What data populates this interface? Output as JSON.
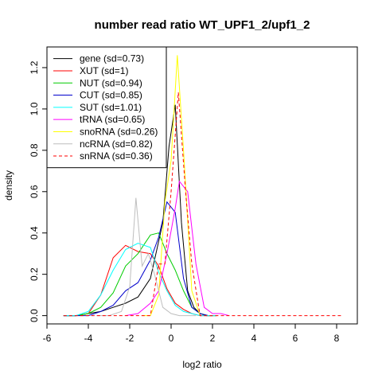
{
  "chart_data": {
    "type": "line",
    "title": "number read ratio WT_UPF1_2/upf1_2",
    "xlabel": "log2 ratio",
    "ylabel": "density",
    "xlim": [
      -6,
      9
    ],
    "ylim": [
      -0.04,
      1.3
    ],
    "xticks": [
      -6,
      -4,
      -2,
      0,
      2,
      4,
      6,
      8
    ],
    "yticks": [
      0.0,
      0.2,
      0.4,
      0.6,
      0.8,
      1.0,
      1.2
    ],
    "legend_position": "top-left",
    "series": [
      {
        "name": "gene (sd=0.73)",
        "color": "#000000",
        "dash": "solid",
        "x": [
          -5.2,
          -4.6,
          -4.0,
          -3.4,
          -2.8,
          -2.2,
          -1.6,
          -1.0,
          -0.4,
          -0.1,
          0.2,
          0.5,
          0.8,
          1.1,
          1.4,
          1.7,
          2.0
        ],
        "y": [
          0.0,
          0.0,
          0.01,
          0.02,
          0.04,
          0.06,
          0.09,
          0.18,
          0.45,
          0.82,
          1.02,
          0.45,
          0.12,
          0.04,
          0.01,
          0.0,
          0.0
        ]
      },
      {
        "name": "XUT (sd=1)",
        "color": "#ff0000",
        "dash": "solid",
        "x": [
          -5.2,
          -4.6,
          -4.0,
          -3.4,
          -2.8,
          -2.2,
          -1.6,
          -1.0,
          -0.6,
          -0.2,
          0.2,
          0.6,
          1.0,
          1.4,
          1.8,
          2.2
        ],
        "y": [
          0.0,
          0.0,
          0.01,
          0.1,
          0.28,
          0.34,
          0.31,
          0.3,
          0.24,
          0.13,
          0.06,
          0.03,
          0.01,
          0.0,
          0.0,
          0.0
        ]
      },
      {
        "name": "NUT (sd=0.94)",
        "color": "#00cc00",
        "dash": "solid",
        "x": [
          -5.2,
          -4.6,
          -4.0,
          -3.4,
          -2.8,
          -2.2,
          -1.6,
          -1.0,
          -0.6,
          -0.2,
          0.2,
          0.6,
          1.0,
          1.4,
          1.8,
          2.2
        ],
        "y": [
          0.0,
          0.0,
          0.01,
          0.04,
          0.11,
          0.24,
          0.3,
          0.39,
          0.4,
          0.3,
          0.22,
          0.12,
          0.04,
          0.01,
          0.0,
          0.0
        ]
      },
      {
        "name": "CUT (sd=0.85)",
        "color": "#0000cc",
        "dash": "solid",
        "x": [
          -5.2,
          -4.6,
          -4.0,
          -3.4,
          -2.8,
          -2.2,
          -1.6,
          -1.0,
          -0.6,
          -0.2,
          0.2,
          0.6,
          1.0,
          1.4,
          1.8
        ],
        "y": [
          0.0,
          0.0,
          0.0,
          0.02,
          0.05,
          0.12,
          0.16,
          0.27,
          0.38,
          0.55,
          0.5,
          0.18,
          0.04,
          0.01,
          0.0
        ]
      },
      {
        "name": "SUT (sd=1.01)",
        "color": "#00ffff",
        "dash": "solid",
        "x": [
          -5.2,
          -4.6,
          -4.0,
          -3.4,
          -2.8,
          -2.2,
          -1.6,
          -1.0,
          -0.6,
          -0.2,
          0.2,
          0.6,
          1.0,
          1.4,
          1.8,
          2.2
        ],
        "y": [
          0.0,
          0.0,
          0.02,
          0.1,
          0.22,
          0.32,
          0.35,
          0.33,
          0.21,
          0.12,
          0.05,
          0.02,
          0.01,
          0.0,
          0.0,
          0.0
        ]
      },
      {
        "name": "tRNA (sd=0.65)",
        "color": "#ff00ff",
        "dash": "solid",
        "x": [
          -2.2,
          -1.6,
          -1.0,
          -0.6,
          -0.2,
          0.2,
          0.4,
          0.8,
          1.2,
          1.6,
          2.0,
          2.4,
          2.8
        ],
        "y": [
          0.0,
          0.01,
          0.06,
          0.12,
          0.3,
          0.52,
          0.65,
          0.6,
          0.25,
          0.04,
          0.01,
          0.01,
          0.0
        ]
      },
      {
        "name": "snoRNA (sd=0.26)",
        "color": "#ffff00",
        "dash": "solid",
        "x": [
          -1.4,
          -1.0,
          -0.6,
          -0.3,
          0.0,
          0.3,
          0.6,
          1.0,
          1.4
        ],
        "y": [
          0.0,
          0.0,
          0.1,
          0.55,
          0.75,
          1.26,
          0.8,
          0.12,
          0.0
        ]
      },
      {
        "name": "ncRNA (sd=0.82)",
        "color": "#bebebe",
        "dash": "solid",
        "x": [
          -3.6,
          -3.0,
          -2.4,
          -2.0,
          -1.7,
          -1.4,
          -1.1,
          -0.8,
          -0.4,
          0.0,
          0.4,
          0.8,
          1.2
        ],
        "y": [
          0.0,
          0.0,
          0.02,
          0.14,
          0.57,
          0.24,
          0.3,
          0.2,
          0.04,
          0.01,
          0.0,
          0.0,
          0.0
        ]
      },
      {
        "name": "snRNA (sd=0.36)",
        "color": "#ff0000",
        "dash": "dashed",
        "x": [
          -5.2,
          -3.0,
          -1.0,
          -0.6,
          -0.3,
          0.0,
          0.35,
          0.7,
          1.0,
          1.4,
          1.8,
          2.4,
          4.0,
          6.0,
          8.3
        ],
        "y": [
          0.0,
          0.0,
          0.0,
          0.25,
          0.25,
          0.6,
          1.08,
          0.6,
          0.25,
          0.0,
          0.0,
          0.0,
          0.0,
          0.0,
          0.0
        ]
      }
    ]
  }
}
